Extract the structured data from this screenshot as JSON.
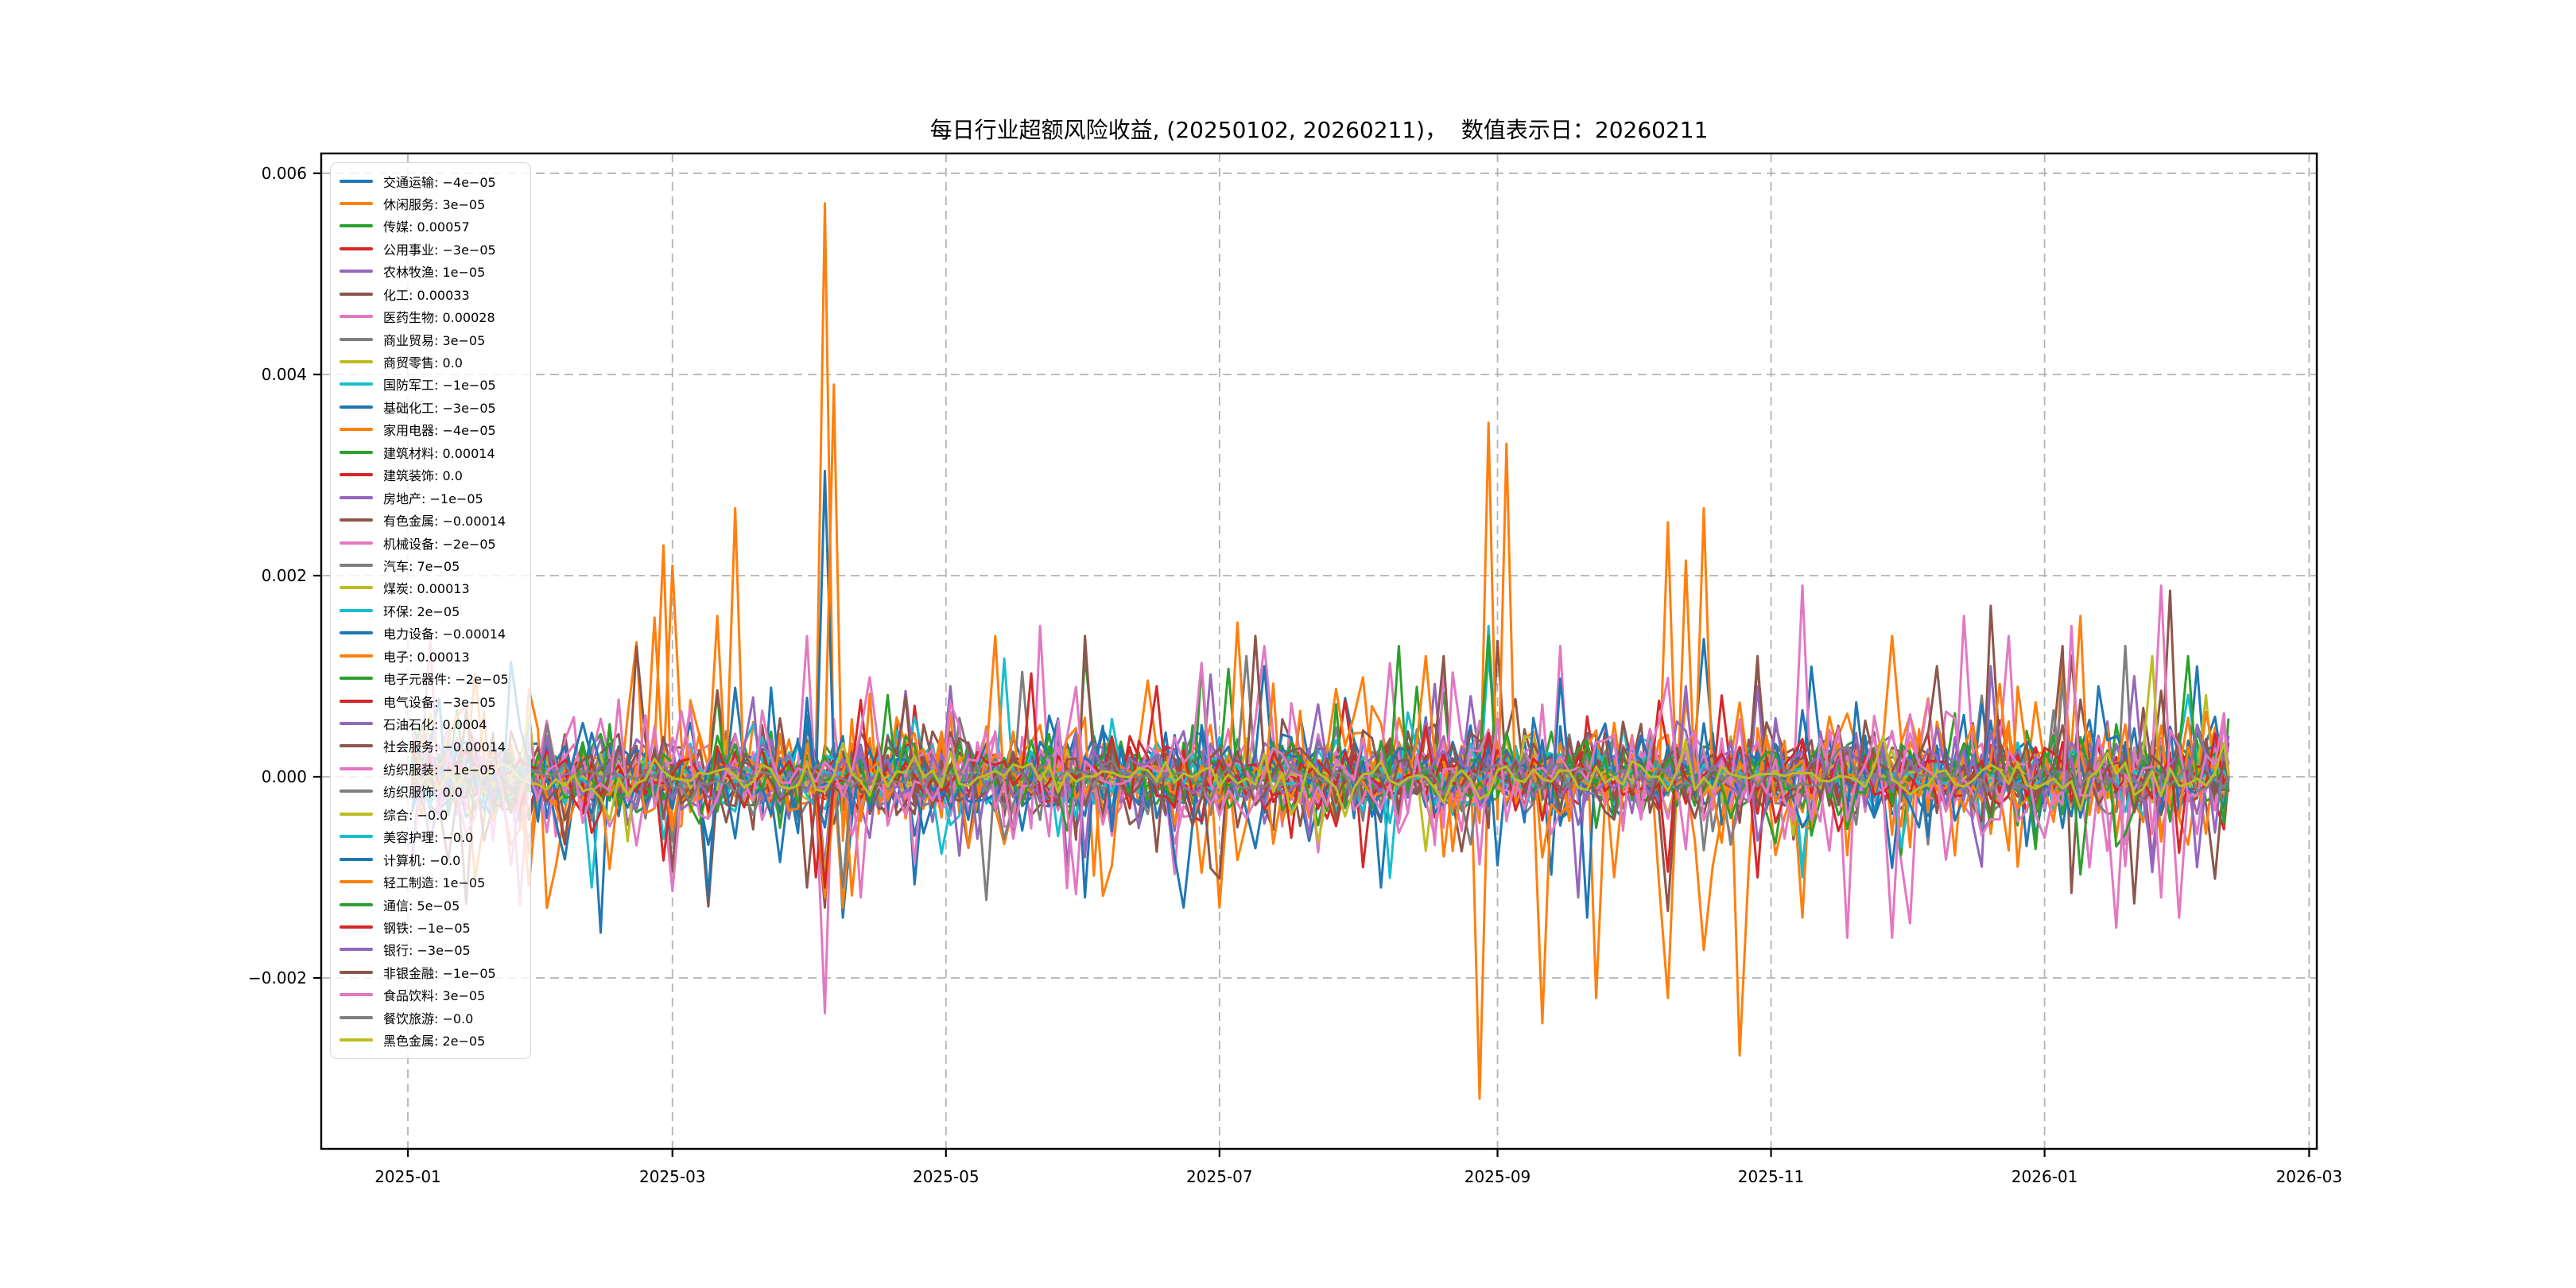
{
  "chart_data": {
    "type": "line",
    "title": "每日行业超额风险收益, (20250102, 20260211)，  数值表示日：20260211",
    "date_range": {
      "start": "20250102",
      "end": "20260211"
    },
    "value_date": "20260211",
    "xlabel": "",
    "ylabel": "",
    "grid": true,
    "legend_position": "upper left",
    "legend_format": "name: value",
    "x_ticks": [
      {
        "label": "2025-01",
        "day": -1
      },
      {
        "label": "2025-03",
        "day": 58
      },
      {
        "label": "2025-05",
        "day": 119
      },
      {
        "label": "2025-07",
        "day": 180
      },
      {
        "label": "2025-09",
        "day": 242
      },
      {
        "label": "2025-11",
        "day": 303
      },
      {
        "label": "2026-01",
        "day": 364
      },
      {
        "label": "2026-03",
        "day": 423
      }
    ],
    "y_ticks": [
      {
        "label": "0.006",
        "value": 0.006
      },
      {
        "label": "0.004",
        "value": 0.004
      },
      {
        "label": "0.002",
        "value": 0.002
      },
      {
        "label": "0.000",
        "value": 0.0
      },
      {
        "label": "−0.002",
        "value": -0.002
      }
    ],
    "ylim": [
      -0.0037,
      0.0062
    ],
    "xlim_days": [
      -20.5,
      424.8
    ],
    "max_point": {
      "series": "休闲服务-like orange",
      "approx_value": 0.0057,
      "approx_date": "2025-04"
    },
    "min_point": {
      "series": "orange",
      "approx_value": -0.0032,
      "approx_date": "2025-08/09"
    },
    "series": [
      {
        "name": "交通运输",
        "value": "−4e−05",
        "color": "#1f77b4",
        "render": {
          "amp": 0.00038,
          "events": [
            [
              41,
              -0.00155
            ],
            [
              96,
              -0.0014
            ],
            [
              215,
              -0.0011
            ]
          ]
        }
      },
      {
        "name": "休闲服务",
        "value": "3e−05",
        "color": "#ff7f0e",
        "render": {
          "amp": 0.00075,
          "events": [
            [
              56,
              0.0023
            ],
            [
              92,
              0.0057
            ],
            [
              96,
              -0.0013
            ],
            [
              238,
              -0.0032
            ],
            [
              252,
              -0.00245
            ],
            [
              263,
              -0.0022
            ],
            [
              280,
              -0.0022
            ],
            [
              295,
              -0.00277
            ],
            [
              368,
              0.0012
            ]
          ]
        }
      },
      {
        "name": "传媒",
        "value": "0.00057",
        "color": "#2ca02c",
        "render": {
          "amp": 0.00035,
          "events": [
            [
              150,
              0.0012
            ]
          ]
        }
      },
      {
        "name": "公用事业",
        "value": "−3e−05",
        "color": "#d62728",
        "render": {
          "amp": 0.00028,
          "events": [
            [
              212,
              -0.0009
            ]
          ]
        }
      },
      {
        "name": "农林牧渔",
        "value": "1e−05",
        "color": "#9467bd",
        "render": {
          "amp": 0.00028,
          "events": [
            [
              92,
              -0.0009
            ],
            [
              120,
              0.0009
            ]
          ]
        }
      },
      {
        "name": "化工",
        "value": "0.00033",
        "color": "#8c564b",
        "render": {
          "amp": 0.00042,
          "events": [
            [
              242,
              0.00135
            ],
            [
              299,
              0.0012
            ],
            [
              368,
              0.0013
            ],
            [
              392,
              0.00185
            ]
          ]
        }
      },
      {
        "name": "医药生物",
        "value": "0.00028",
        "color": "#e377c2",
        "render": {
          "amp": 0.00055,
          "events": [
            [
              88,
              0.0014
            ],
            [
              92,
              -0.00235
            ],
            [
              140,
              0.0015
            ],
            [
              310,
              0.0019
            ],
            [
              320,
              -0.0016
            ],
            [
              355,
              0.0014
            ]
          ]
        }
      },
      {
        "name": "商业贸易",
        "value": "3e−05",
        "color": "#7f7f7f",
        "render": {
          "amp": 0.00035,
          "events": [
            [
              95,
              -0.0011
            ],
            [
              185,
              0.0012
            ]
          ]
        }
      },
      {
        "name": "商贸零售",
        "value": "0.0",
        "color": "#bcbd22",
        "render": {
          "amp": 0.0001,
          "events": []
        }
      },
      {
        "name": "国防军工",
        "value": "−1e−05",
        "color": "#17becf",
        "render": {
          "amp": 0.00035,
          "events": [
            [
              240,
              0.0015
            ],
            [
              310,
              -0.001
            ]
          ]
        }
      },
      {
        "name": "基础化工",
        "value": "−3e−05",
        "color": "#1f77b4",
        "render": {
          "amp": 0.00045,
          "events": [
            [
              92,
              0.00304
            ],
            [
              150,
              -0.0012
            ],
            [
              240,
              0.0013
            ],
            [
              287,
              0.00137
            ]
          ]
        }
      },
      {
        "name": "家用电器",
        "value": "−4e−05",
        "color": "#ff7f0e",
        "render": {
          "amp": 0.0004,
          "events": [
            [
              68,
              0.0016
            ],
            [
              180,
              -0.0013
            ],
            [
              310,
              -0.0014
            ]
          ]
        }
      },
      {
        "name": "建筑材料",
        "value": "0.00014",
        "color": "#2ca02c",
        "render": {
          "amp": 0.0003,
          "events": [
            [
              175,
              0.0011
            ]
          ]
        }
      },
      {
        "name": "建筑装饰",
        "value": "0.0",
        "color": "#d62728",
        "render": {
          "amp": 0.00028,
          "events": [
            [
              90,
              -0.001
            ]
          ]
        }
      },
      {
        "name": "房地产",
        "value": "−1e−05",
        "color": "#9467bd",
        "render": {
          "amp": 0.00035,
          "events": [
            [
              260,
              -0.0012
            ],
            [
              300,
              0.0009
            ]
          ]
        }
      },
      {
        "name": "有色金属",
        "value": "−0.00014",
        "color": "#8c564b",
        "render": {
          "amp": 0.00045,
          "events": [
            [
              50,
              0.0013
            ],
            [
              92,
              -0.0013
            ],
            [
              150,
              0.0014
            ],
            [
              230,
              0.0012
            ]
          ]
        }
      },
      {
        "name": "机械设备",
        "value": "−2e−05",
        "color": "#e377c2",
        "render": {
          "amp": 0.0005,
          "events": [
            [
              190,
              0.0013
            ],
            [
              345,
              0.0016
            ],
            [
              390,
              0.0019
            ],
            [
              394,
              -0.0014
            ]
          ]
        }
      },
      {
        "name": "汽车",
        "value": "7e−05",
        "color": "#7f7f7f",
        "render": {
          "amp": 0.00035,
          "events": [
            [
              96,
              -0.0011
            ],
            [
              382,
              0.0013
            ]
          ]
        }
      },
      {
        "name": "煤炭",
        "value": "0.00013",
        "color": "#bcbd22",
        "render": {
          "amp": 0.0003,
          "events": [
            [
              92,
              -0.001
            ],
            [
              387,
              0.0012
            ]
          ]
        }
      },
      {
        "name": "环保",
        "value": "2e−05",
        "color": "#17becf",
        "render": {
          "amp": 0.0003,
          "events": [
            [
              40,
              -0.0011
            ],
            [
              240,
              0.0012
            ]
          ]
        }
      },
      {
        "name": "电力设备",
        "value": "−0.00014",
        "color": "#1f77b4",
        "render": {
          "amp": 0.0004,
          "events": [
            [
              65,
              -0.0012
            ],
            [
              190,
              0.0011
            ]
          ]
        }
      },
      {
        "name": "电子",
        "value": "0.00013",
        "color": "#ff7f0e",
        "render": {
          "amp": 0.0007,
          "events": [
            [
              58,
              0.0021
            ],
            [
              93,
              0.0039
            ],
            [
              240,
              0.00352
            ],
            [
              244,
              0.00331
            ],
            [
              279,
              0.00253
            ],
            [
              283,
              0.00215
            ],
            [
              287,
              0.00267
            ],
            [
              330,
              0.0014
            ],
            [
              371,
              0.0016
            ]
          ]
        }
      },
      {
        "name": "电子元器件",
        "value": "−2e−05",
        "color": "#2ca02c",
        "render": {
          "amp": 0.00032,
          "events": [
            [
              240,
              0.0014
            ]
          ]
        }
      },
      {
        "name": "电气设备",
        "value": "−3e−05",
        "color": "#d62728",
        "render": {
          "amp": 0.0003,
          "events": [
            [
              165,
              0.0009
            ]
          ]
        }
      },
      {
        "name": "石油石化",
        "value": "0.0004",
        "color": "#9467bd",
        "render": {
          "amp": 0.00035,
          "events": [
            [
              352,
              0.0011
            ],
            [
              383,
              0.001
            ],
            [
              398,
              -0.0009
            ]
          ]
        }
      },
      {
        "name": "社会服务",
        "value": "−0.00014",
        "color": "#8c564b",
        "render": {
          "amp": 0.00038,
          "events": [
            [
              92,
              -0.0012
            ],
            [
              188,
              0.0014
            ],
            [
              352,
              0.0017
            ]
          ]
        }
      },
      {
        "name": "纺织服装",
        "value": "−1e−05",
        "color": "#e377c2",
        "render": {
          "amp": 0.00038,
          "events": [
            [
              100,
              -0.0012
            ],
            [
              255,
              0.0013
            ]
          ]
        }
      },
      {
        "name": "纺织服饰",
        "value": "0.0",
        "color": "#7f7f7f",
        "render": {
          "amp": 0.0001,
          "events": []
        }
      },
      {
        "name": "综合",
        "value": "−0.0",
        "color": "#bcbd22",
        "render": {
          "amp": 0.0001,
          "events": []
        }
      },
      {
        "name": "美容护理",
        "value": "−0.0",
        "color": "#17becf",
        "render": {
          "amp": 0.00012,
          "events": []
        }
      },
      {
        "name": "计算机",
        "value": "−0.0",
        "color": "#1f77b4",
        "render": {
          "amp": 0.00045,
          "events": [
            [
              172,
              -0.0013
            ],
            [
              262,
              -0.0014
            ],
            [
              375,
              0.0009
            ]
          ]
        }
      },
      {
        "name": "轻工制造",
        "value": "1e−05",
        "color": "#ff7f0e",
        "render": {
          "amp": 0.0003,
          "events": [
            [
              92,
              -0.0012
            ],
            [
              130,
              0.0014
            ],
            [
              225,
              0.0012
            ]
          ]
        }
      },
      {
        "name": "通信",
        "value": "5e−05",
        "color": "#2ca02c",
        "render": {
          "amp": 0.00035,
          "events": [
            [
              220,
              0.0013
            ],
            [
              395,
              0.0012
            ]
          ]
        }
      },
      {
        "name": "钢铁",
        "value": "−1e−05",
        "color": "#d62728",
        "render": {
          "amp": 0.00028,
          "events": [
            [
              92,
              -0.0011
            ],
            [
              300,
              -0.001
            ]
          ]
        }
      },
      {
        "name": "银行",
        "value": "−3e−05",
        "color": "#9467bd",
        "render": {
          "amp": 0.00028,
          "events": [
            [
              150,
              -0.0008
            ],
            [
              284,
              0.0009
            ],
            [
              388,
              -0.0008
            ]
          ]
        }
      },
      {
        "name": "非银金融",
        "value": "−1e−05",
        "color": "#8c564b",
        "render": {
          "amp": 0.00035,
          "events": [
            [
              87,
              -0.0011
            ],
            [
              340,
              0.0011
            ]
          ]
        }
      },
      {
        "name": "食品饮料",
        "value": "3e−05",
        "color": "#e377c2",
        "render": {
          "amp": 0.0005,
          "events": [
            [
              330,
              -0.0016
            ],
            [
              370,
              0.0015
            ],
            [
              380,
              -0.0015
            ],
            [
              389,
              -0.0012
            ]
          ]
        }
      },
      {
        "name": "餐饮旅游",
        "value": "−0.0",
        "color": "#7f7f7f",
        "render": {
          "amp": 0.00012,
          "events": []
        }
      },
      {
        "name": "黑色金属",
        "value": "2e−05",
        "color": "#bcbd22",
        "render": {
          "amp": 0.00018,
          "events": []
        }
      }
    ]
  }
}
